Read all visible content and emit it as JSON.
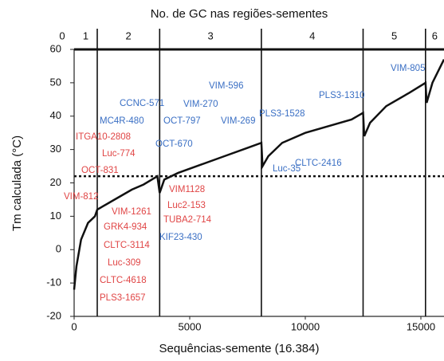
{
  "chart_data": {
    "type": "line",
    "title": "No.  de GC nas regiões-sementes",
    "xlabel": "Sequências-semente (16.384)",
    "ylabel": "Tm calculada (°C)",
    "x": [
      0,
      100,
      300,
      600,
      900,
      1000,
      1500,
      2000,
      2500,
      3000,
      3600,
      3700,
      3900,
      4500,
      5500,
      6500,
      7500,
      8100,
      8150,
      8400,
      9000,
      10000,
      11000,
      12000,
      12500,
      12550,
      12800,
      13500,
      14500,
      15200,
      15250,
      15500,
      16000
    ],
    "series": [
      {
        "color": "#111111",
        "values": [
          -12,
          -5,
          3,
          8,
          10,
          12,
          14,
          16,
          18,
          19.5,
          22,
          17,
          21,
          23,
          25.5,
          28,
          30.5,
          32,
          25,
          28,
          32,
          35,
          37,
          39,
          41,
          34,
          38,
          43,
          47,
          50,
          44,
          50,
          57
        ]
      }
    ],
    "xlim": [
      0,
      16000
    ],
    "xticks": [
      0,
      5000,
      10000,
      15000
    ],
    "ylim": [
      -20,
      60
    ],
    "yticks": [
      -20,
      -10,
      0,
      10,
      20,
      30,
      40,
      50,
      60
    ],
    "reference_line": 22,
    "regions": [
      0,
      1,
      2,
      3,
      4,
      5,
      6
    ],
    "region_boundaries": [
      1000,
      3700,
      8100,
      12500,
      15200
    ],
    "annotations": [
      {
        "text": "VIM-805",
        "color": "#3a6fc4"
      },
      {
        "text": "PLS3-1310",
        "color": "#3a6fc4"
      },
      {
        "text": "PLS3-1528",
        "color": "#3a6fc4"
      },
      {
        "text": "VIM-596",
        "color": "#3a6fc4"
      },
      {
        "text": "CCNC-571",
        "color": "#3a6fc4"
      },
      {
        "text": "VIM-270",
        "color": "#3a6fc4"
      },
      {
        "text": "MC4R-480",
        "color": "#3a6fc4"
      },
      {
        "text": "OCT-797",
        "color": "#3a6fc4"
      },
      {
        "text": "VIM-269",
        "color": "#3a6fc4"
      },
      {
        "text": "ITGA10-2808",
        "color": "#e04545"
      },
      {
        "text": "OCT-670",
        "color": "#3a6fc4"
      },
      {
        "text": "Luc-774",
        "color": "#e04545"
      },
      {
        "text": "CLTC-2416",
        "color": "#3a6fc4"
      },
      {
        "text": "Luc-35",
        "color": "#3a6fc4"
      },
      {
        "text": "OCT-831",
        "color": "#e04545"
      },
      {
        "text": "VIM1128",
        "color": "#e04545"
      },
      {
        "text": "VIM-812",
        "color": "#e04545"
      },
      {
        "text": "Luc2-153",
        "color": "#e04545"
      },
      {
        "text": "VIM-1261",
        "color": "#e04545"
      },
      {
        "text": "TUBA2-714",
        "color": "#e04545"
      },
      {
        "text": "GRK4-934",
        "color": "#e04545"
      },
      {
        "text": "KIF23-430",
        "color": "#3a6fc4"
      },
      {
        "text": "CLTC-3114",
        "color": "#e04545"
      },
      {
        "text": "Luc-309",
        "color": "#e04545"
      },
      {
        "text": "CLTC-4618",
        "color": "#e04545"
      },
      {
        "text": "PLS3-1657",
        "color": "#e04545"
      }
    ]
  }
}
